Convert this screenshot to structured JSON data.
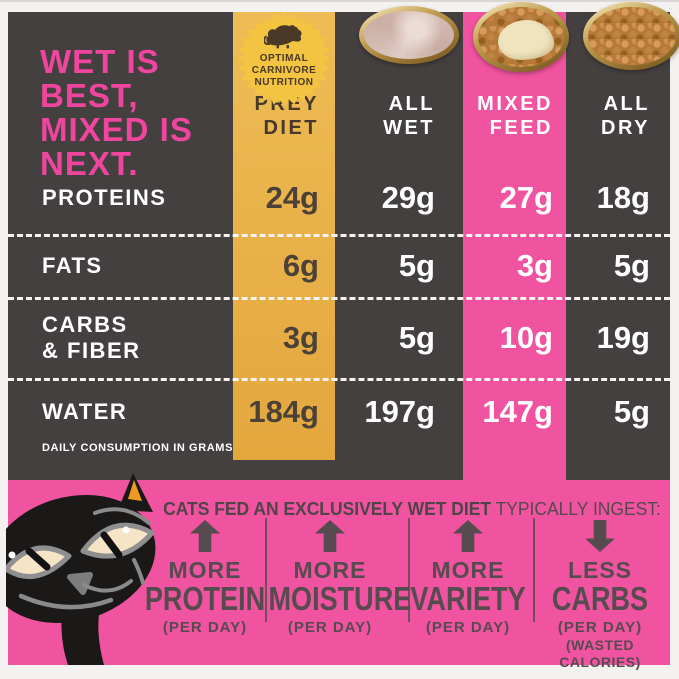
{
  "title": {
    "lines": [
      "WET IS",
      "BEST,",
      "MIXED IS",
      "NEXT."
    ]
  },
  "badge": {
    "lines": [
      "OPTIMAL",
      "CARNIVORE",
      "NUTRITION"
    ]
  },
  "table": {
    "column_headers": [
      {
        "line1": "PREY",
        "line2": "DIET"
      },
      {
        "line1": "ALL",
        "line2": "WET"
      },
      {
        "line1": "MIXED",
        "line2": "FEED"
      },
      {
        "line1": "ALL",
        "line2": "DRY"
      }
    ],
    "rows": [
      {
        "label": "PROTEINS",
        "label2": "",
        "values": [
          "24g",
          "29g",
          "27g",
          "18g"
        ]
      },
      {
        "label": "FATS",
        "label2": "",
        "values": [
          "6g",
          "5g",
          "3g",
          "5g"
        ]
      },
      {
        "label": "CARBS",
        "label2": "& FIBER",
        "values": [
          "3g",
          "5g",
          "10g",
          "19g"
        ]
      },
      {
        "label": "WATER",
        "label2": "",
        "values": [
          "184g",
          "197g",
          "147g",
          "5g"
        ]
      }
    ],
    "footnote": "DAILY CONSUMPTION IN GRAMS"
  },
  "bottom": {
    "headline_bold": "CATS FED AN EXCLUSIVELY WET DIET",
    "headline_rest": " TYPICALLY INGEST:",
    "benefits": [
      {
        "arrow": "up",
        "qualifier": "MORE",
        "term": "PROTEIN",
        "note": "(PER DAY)",
        "note2": ""
      },
      {
        "arrow": "up",
        "qualifier": "MORE",
        "term": "MOISTURE",
        "note": "(PER DAY)",
        "note2": ""
      },
      {
        "arrow": "up",
        "qualifier": "MORE",
        "term": "VARIETY",
        "note": "(PER DAY)",
        "note2": ""
      },
      {
        "arrow": "down",
        "qualifier": "LESS",
        "term": "CARBS",
        "note": "(PER DAY)",
        "note2": "(WASTED CALORIES)"
      }
    ]
  },
  "chart_data": {
    "type": "table",
    "title": "WET IS BEST, MIXED IS NEXT.",
    "unit": "grams per day",
    "categories": [
      "PREY DIET",
      "ALL WET",
      "MIXED FEED",
      "ALL DRY"
    ],
    "series": [
      {
        "name": "PROTEINS",
        "values": [
          24,
          29,
          27,
          18
        ]
      },
      {
        "name": "FATS",
        "values": [
          6,
          5,
          3,
          5
        ]
      },
      {
        "name": "CARBS & FIBER",
        "values": [
          3,
          5,
          10,
          19
        ]
      },
      {
        "name": "WATER",
        "values": [
          184,
          197,
          147,
          5
        ]
      }
    ],
    "footnote": "DAILY CONSUMPTION IN GRAMS"
  },
  "icons": {
    "badge_icon": "mouse-icon",
    "benefit_up": "up-arrow-icon",
    "benefit_down": "down-arrow-icon",
    "photos": [
      "wet-food-bowl",
      "mixed-food-bowl",
      "dry-food-bowl"
    ],
    "mascot": "black-cat-illustration"
  },
  "colors": {
    "background_gray": "#454040",
    "pink": "#F0539F",
    "heading_pink": "#F0459C",
    "gold_column": "#E9B04C",
    "badge_gold": "#F3C342",
    "badge_ink": "#4A3926",
    "gold_value_ink": "#4C4137",
    "bottom_ink": "#564B4F",
    "white": "#FFFFFF",
    "ear_orange": "#F09A20"
  }
}
